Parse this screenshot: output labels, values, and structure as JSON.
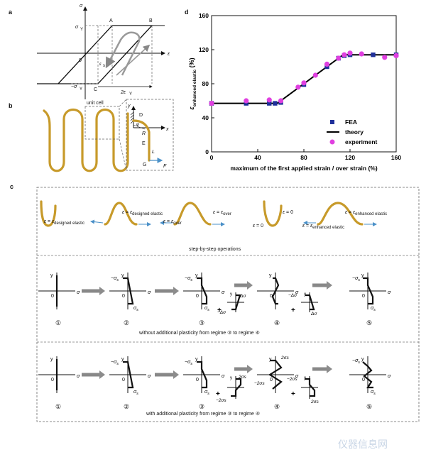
{
  "panels": {
    "a": {
      "label": "a",
      "sigma": "σ",
      "sigma_y": "σ",
      "neg_sigma_y": "−σ",
      "epsilon": "ε",
      "eps_s": "ε",
      "two_eps": "2ε",
      "origin": "0",
      "A": "A",
      "B": "B",
      "C": "C"
    },
    "b": {
      "label": "b",
      "unit_cell": "unit cell",
      "y": "y",
      "x": "x",
      "D": "D",
      "R": "R",
      "E": "E",
      "L": "L",
      "G": "G",
      "F": "F",
      "phi": "φ"
    },
    "c": {
      "label": "c",
      "step_caption": "step-by-step operations",
      "strain_labels": {
        "eps": "ε",
        "eq": " = ",
        "designed": "designed elastic",
        "over": "over",
        "zero": "0",
        "enhanced": "enhanced elastic"
      },
      "row1_caption": "without  additional plasticity from regime ③ to regime ④",
      "row2_caption": "with  additional plasticity from regime ③ to regime ④",
      "steps": [
        "①",
        "②",
        "③",
        "④",
        "⑤"
      ],
      "axis_y": "y",
      "axis_sigma": "σ",
      "sigma_s": "σ",
      "neg_sigma_s": "−σ",
      "sub_s": "s",
      "delta_sigma": "Δσ",
      "neg_delta_sigma": "−Δσ",
      "two_sigma_s": "2σ",
      "neg_two_sigma_s": "−2σ",
      "plus": "+",
      "zero": "0"
    },
    "d": {
      "label": "d"
    }
  },
  "chart_data": {
    "type": "scatter",
    "xlabel": "maximum of the first applied strain / over strain (%)",
    "ylabel_main": "ε",
    "ylabel_sub": "enhanced elastic",
    "ylabel_unit": "(%)",
    "xlim": [
      0,
      160
    ],
    "ylim": [
      0,
      160
    ],
    "xticks": [
      0,
      40,
      80,
      120,
      160
    ],
    "yticks": [
      0,
      40,
      80,
      120,
      160
    ],
    "legend_position": "bottom-right",
    "series": [
      {
        "name": "FEA",
        "type": "scatter",
        "marker": "square",
        "color": "#1f2f9a",
        "x": [
          0,
          30,
          50,
          55,
          60,
          80,
          100,
          110,
          115,
          120,
          140,
          160
        ],
        "y": [
          57,
          57,
          57,
          57,
          58,
          79,
          100,
          110,
          113,
          114,
          114,
          114
        ]
      },
      {
        "name": "theory",
        "type": "line",
        "color": "#000000",
        "x": [
          0,
          57,
          114,
          160
        ],
        "y": [
          57,
          57,
          114,
          114
        ]
      },
      {
        "name": "experiment",
        "type": "scatter",
        "marker": "circle",
        "color": "#e040e0",
        "x": [
          0,
          30,
          50,
          60,
          75,
          80,
          90,
          100,
          110,
          115,
          120,
          130,
          150,
          160
        ],
        "y": [
          57,
          60,
          61,
          60,
          76,
          81,
          90,
          103,
          110,
          114,
          116,
          115,
          111,
          113
        ]
      }
    ]
  },
  "watermark": "仪器信息网"
}
